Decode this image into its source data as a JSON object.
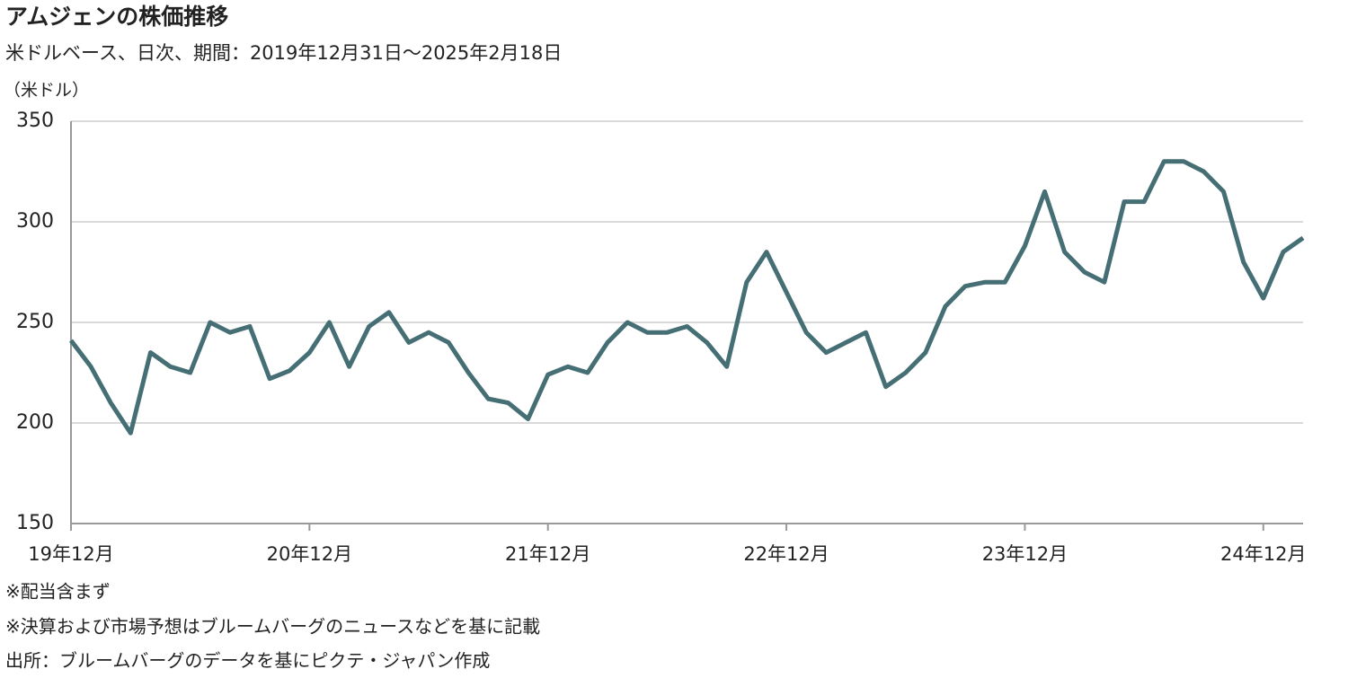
{
  "chart_data": {
    "type": "line",
    "title": "アムジェンの株価推移",
    "subtitle": "米ドルベース、日次、期間：2019年12月31日～2025年2月18日",
    "y_axis_label": "（米ドル）",
    "x": [
      "2019-12",
      "2020-01",
      "2020-02",
      "2020-03",
      "2020-04",
      "2020-05",
      "2020-06",
      "2020-07",
      "2020-08",
      "2020-09",
      "2020-10",
      "2020-11",
      "2020-12",
      "2021-01",
      "2021-02",
      "2021-03",
      "2021-04",
      "2021-05",
      "2021-06",
      "2021-07",
      "2021-08",
      "2021-09",
      "2021-10",
      "2021-11",
      "2021-12",
      "2022-01",
      "2022-02",
      "2022-03",
      "2022-04",
      "2022-05",
      "2022-06",
      "2022-07",
      "2022-08",
      "2022-09",
      "2022-10",
      "2022-11",
      "2022-12",
      "2023-01",
      "2023-02",
      "2023-03",
      "2023-04",
      "2023-05",
      "2023-06",
      "2023-07",
      "2023-08",
      "2023-09",
      "2023-10",
      "2023-11",
      "2023-12",
      "2024-01",
      "2024-02",
      "2024-03",
      "2024-04",
      "2024-05",
      "2024-06",
      "2024-07",
      "2024-08",
      "2024-09",
      "2024-10",
      "2024-11",
      "2024-12",
      "2025-01",
      "2025-02"
    ],
    "series": [
      {
        "name": "アムジェン",
        "color": "#456f74",
        "values": [
          241,
          228,
          210,
          195,
          235,
          228,
          225,
          250,
          245,
          248,
          222,
          226,
          235,
          250,
          228,
          248,
          255,
          240,
          245,
          240,
          225,
          212,
          210,
          202,
          224,
          228,
          225,
          240,
          250,
          245,
          245,
          248,
          240,
          228,
          270,
          285,
          265,
          245,
          235,
          240,
          245,
          218,
          225,
          235,
          258,
          268,
          270,
          270,
          288,
          315,
          285,
          275,
          270,
          310,
          310,
          330,
          330,
          325,
          315,
          280,
          262,
          285,
          292
        ]
      }
    ],
    "xlim": [
      "2019-12",
      "2025-02"
    ],
    "xticks": [
      {
        "value": "2019-12",
        "label": "19年12月"
      },
      {
        "value": "2020-12",
        "label": "20年12月"
      },
      {
        "value": "2021-12",
        "label": "21年12月"
      },
      {
        "value": "2022-12",
        "label": "22年12月"
      },
      {
        "value": "2023-12",
        "label": "23年12月"
      },
      {
        "value": "2024-12",
        "label": "24年12月"
      }
    ],
    "ylim": [
      150,
      350
    ],
    "yticks": [
      150,
      200,
      250,
      300,
      350
    ],
    "grid": true,
    "notes": [
      "※配当含まず",
      "※決算および市場予想はブルームバーグのニュースなどを基に記載",
      "出所：ブルームバーグのデータを基にピクテ・ジャパン作成"
    ]
  }
}
